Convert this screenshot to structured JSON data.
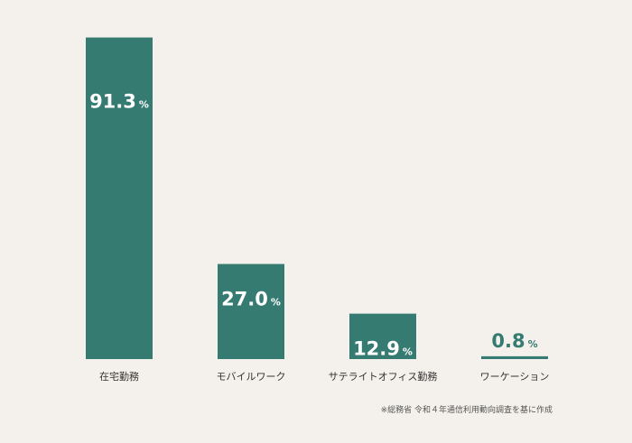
{
  "chart_data": {
    "type": "bar",
    "categories": [
      "在宅勤務",
      "モバイルワーク",
      "サテライトオフィス勤務",
      "ワーケーション"
    ],
    "values": [
      91.3,
      27.0,
      12.9,
      0.8
    ],
    "value_labels": [
      "91.3",
      "27.0",
      "12.9",
      "0.8"
    ],
    "unit": "%",
    "ylim": [
      0,
      100
    ],
    "grid": false,
    "colors": {
      "bar": "#357b72",
      "label_inside": "#ffffff",
      "label_outside": "#357b72"
    }
  },
  "source_note": "※総務省 令和４年通信利用動向調査を基に作成"
}
